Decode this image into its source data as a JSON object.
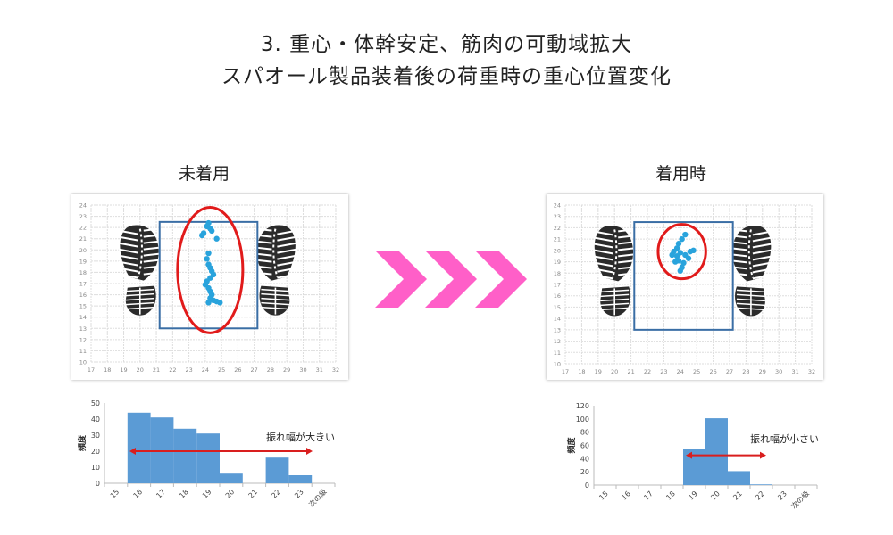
{
  "title_line1": "3. 重心・体幹安定、筋肉の可動域拡大",
  "title_line2": "スパオール製品装着後の荷重時の重心位置変化",
  "colors": {
    "points": "#29a3dc",
    "ellipse": "#e11b1b",
    "box": "#3a6ea5",
    "bars": "#5b9bd5",
    "arrow": "#d91e1e",
    "chevron": "#ff5fc8",
    "shoe": "#2b2b2b"
  },
  "icons": [
    "shoe-sole-print-icon",
    "chevron-right-icon"
  ],
  "chart_data": [
    {
      "type": "scatter",
      "label": "未着用",
      "xlim": [
        17,
        32
      ],
      "ylim": [
        10,
        24
      ],
      "grid": true,
      "xticks": [
        "17",
        "18",
        "19",
        "20",
        "21",
        "22",
        "23",
        "24",
        "25",
        "26",
        "27",
        "28",
        "29",
        "30",
        "31",
        "32"
      ],
      "yticks": [
        "10",
        "11",
        "12",
        "13",
        "14",
        "15",
        "16",
        "17",
        "18",
        "19",
        "20",
        "21",
        "22",
        "23",
        "24"
      ],
      "points": [
        [
          24.2,
          22.4
        ],
        [
          24.1,
          22.1
        ],
        [
          24.3,
          21.9
        ],
        [
          24.4,
          21.7
        ],
        [
          23.9,
          21.5
        ],
        [
          23.8,
          21.3
        ],
        [
          24.7,
          21.0
        ],
        [
          24.2,
          19.7
        ],
        [
          24.1,
          19.2
        ],
        [
          24.2,
          18.7
        ],
        [
          24.3,
          18.4
        ],
        [
          24.4,
          18.1
        ],
        [
          24.5,
          17.8
        ],
        [
          24.3,
          17.5
        ],
        [
          24.1,
          17.2
        ],
        [
          24.0,
          16.9
        ],
        [
          24.2,
          16.6
        ],
        [
          24.3,
          16.3
        ],
        [
          24.4,
          16.0
        ],
        [
          24.3,
          15.7
        ],
        [
          24.5,
          15.5
        ],
        [
          24.7,
          15.4
        ],
        [
          24.9,
          15.3
        ],
        [
          24.2,
          15.3
        ]
      ]
    },
    {
      "type": "scatter",
      "label": "着用時",
      "xlim": [
        17,
        32
      ],
      "ylim": [
        10,
        24
      ],
      "grid": true,
      "xticks": [
        "17",
        "18",
        "19",
        "20",
        "21",
        "22",
        "23",
        "24",
        "25",
        "26",
        "27",
        "28",
        "29",
        "30",
        "31",
        "32"
      ],
      "yticks": [
        "10",
        "11",
        "12",
        "13",
        "14",
        "15",
        "16",
        "17",
        "18",
        "19",
        "20",
        "21",
        "22",
        "23",
        "24"
      ],
      "points": [
        [
          24.3,
          21.4
        ],
        [
          24.1,
          21.0
        ],
        [
          23.9,
          20.6
        ],
        [
          23.8,
          20.2
        ],
        [
          23.6,
          19.9
        ],
        [
          23.5,
          19.6
        ],
        [
          23.8,
          19.5
        ],
        [
          24.0,
          19.8
        ],
        [
          24.3,
          19.6
        ],
        [
          24.6,
          19.9
        ],
        [
          24.8,
          20.0
        ],
        [
          24.5,
          19.3
        ],
        [
          23.9,
          19.1
        ],
        [
          24.2,
          18.9
        ],
        [
          24.1,
          18.5
        ],
        [
          24.0,
          18.2
        ],
        [
          23.7,
          19.0
        ]
      ]
    },
    {
      "type": "bar",
      "annotation": "振れ幅が大きい",
      "ylabel": "頻度",
      "ylim": [
        0,
        50
      ],
      "yticks": [
        "0",
        "10",
        "20",
        "30",
        "40",
        "50"
      ],
      "categories": [
        "15",
        "16",
        "17",
        "18",
        "19",
        "20",
        "21",
        "22",
        "23",
        "次の級"
      ],
      "values": [
        0,
        44,
        41,
        34,
        31,
        6,
        0,
        16,
        5,
        0
      ],
      "arrow_y": 20
    },
    {
      "type": "bar",
      "annotation": "振れ幅が小さい",
      "ylabel": "頻度",
      "ylim": [
        0,
        120
      ],
      "yticks": [
        "0",
        "20",
        "40",
        "60",
        "80",
        "100",
        "120"
      ],
      "categories": [
        "15",
        "16",
        "17",
        "18",
        "19",
        "20",
        "21",
        "22",
        "23",
        "次の級"
      ],
      "values": [
        0,
        0,
        0,
        0,
        54,
        101,
        21,
        1,
        0,
        0
      ],
      "arrow_y": 45
    }
  ]
}
